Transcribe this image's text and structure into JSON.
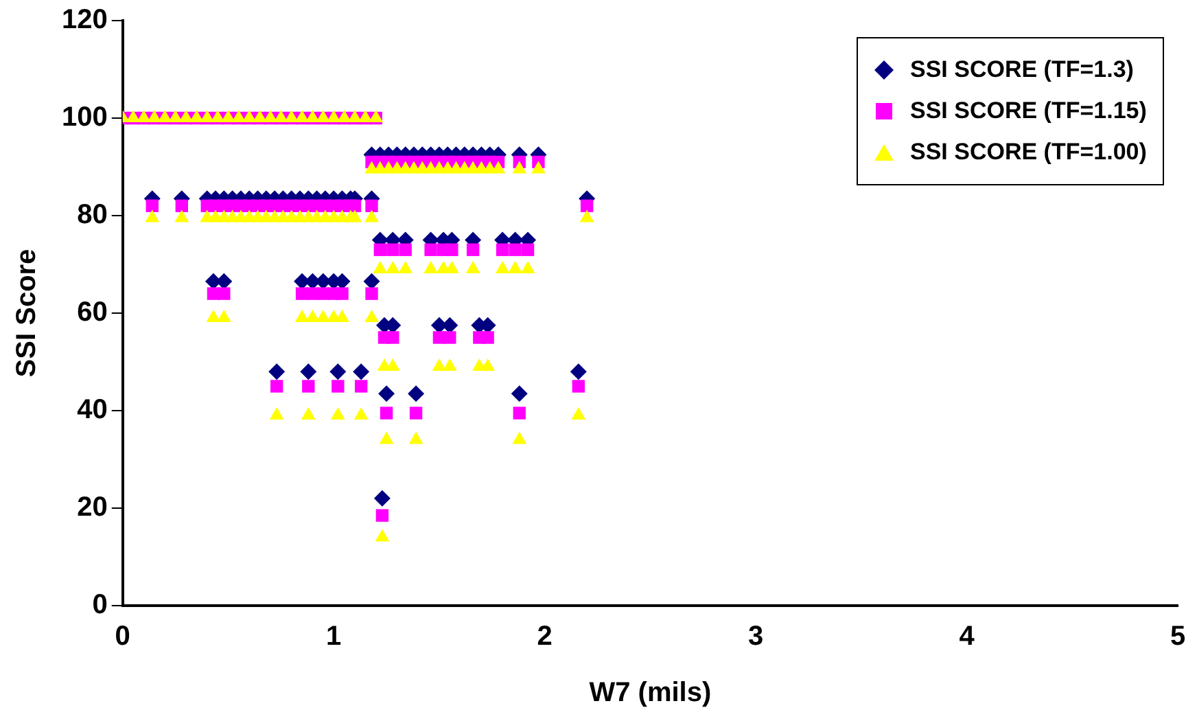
{
  "chart_data": {
    "type": "scatter",
    "xlabel": "W7 (mils)",
    "ylabel": "SSI Score",
    "xlim": [
      0,
      5
    ],
    "xticks": [
      0,
      1,
      2,
      3,
      4,
      5
    ],
    "ylim": [
      0,
      120
    ],
    "yticks": [
      0,
      20,
      40,
      60,
      80,
      100,
      120
    ],
    "grid": false,
    "legend": "top right",
    "x": [
      0,
      0.05,
      0.1,
      0.15,
      0.2,
      0.25,
      0.3,
      0.35,
      0.4,
      0.45,
      0.5,
      0.55,
      0.6,
      0.65,
      0.7,
      0.75,
      0.8,
      0.85,
      0.9,
      0.95,
      1,
      1.05,
      1.1,
      1.15,
      1.2,
      1.18,
      1.22,
      1.26,
      1.3,
      1.34,
      1.38,
      1.42,
      1.46,
      1.5,
      1.54,
      1.58,
      1.62,
      1.66,
      1.7,
      1.74,
      1.78,
      1.88,
      1.97,
      0.14,
      0.28,
      0.4,
      0.44,
      0.48,
      0.52,
      0.56,
      0.6,
      0.64,
      0.68,
      0.72,
      0.76,
      0.8,
      0.84,
      0.88,
      0.92,
      0.96,
      1,
      1.04,
      1.08,
      1.1,
      1.18,
      2.2,
      1.22,
      1.28,
      1.34,
      1.46,
      1.52,
      1.56,
      1.66,
      1.8,
      1.86,
      1.92,
      0.43,
      0.48,
      0.85,
      0.9,
      0.95,
      1,
      1.04,
      1.18,
      1.24,
      1.28,
      1.5,
      1.55,
      1.69,
      1.73,
      0.73,
      0.88,
      1.02,
      1.13,
      2.16,
      1.25,
      1.39,
      1.88,
      1.23
    ],
    "series": [
      {
        "name": "SSI SCORE (TF=1.3)",
        "color": "#000080",
        "marker": "diamond",
        "values": [
          null,
          null,
          null,
          null,
          null,
          null,
          null,
          null,
          null,
          null,
          null,
          null,
          null,
          null,
          null,
          null,
          null,
          null,
          null,
          null,
          null,
          null,
          null,
          null,
          null,
          92.5,
          92.5,
          92.5,
          92.5,
          92.5,
          92.5,
          92.5,
          92.5,
          92.5,
          92.5,
          92.5,
          92.5,
          92.5,
          92.5,
          92.5,
          92.5,
          92.5,
          92.5,
          83.5,
          83.5,
          83.5,
          83.5,
          83.5,
          83.5,
          83.5,
          83.5,
          83.5,
          83.5,
          83.5,
          83.5,
          83.5,
          83.5,
          83.5,
          83.5,
          83.5,
          83.5,
          83.5,
          83.5,
          83.5,
          83.5,
          83.5,
          75,
          75,
          75,
          75,
          75,
          75,
          75,
          75,
          75,
          75,
          66.5,
          66.5,
          66.5,
          66.5,
          66.5,
          66.5,
          66.5,
          66.5,
          57.5,
          57.5,
          57.5,
          57.5,
          57.5,
          57.5,
          48,
          48,
          48,
          48,
          48,
          43.5,
          43.5,
          43.5,
          22
        ]
      },
      {
        "name": "SSI SCORE (TF=1.15)",
        "color": "#ff00ff",
        "marker": "square",
        "values": [
          100,
          100,
          100,
          100,
          100,
          100,
          100,
          100,
          100,
          100,
          100,
          100,
          100,
          100,
          100,
          100,
          100,
          100,
          100,
          100,
          100,
          100,
          100,
          100,
          100,
          91,
          91,
          91,
          91,
          91,
          91,
          91,
          91,
          91,
          91,
          91,
          91,
          91,
          91,
          91,
          91,
          91,
          91,
          82,
          82,
          82,
          82,
          82,
          82,
          82,
          82,
          82,
          82,
          82,
          82,
          82,
          82,
          82,
          82,
          82,
          82,
          82,
          82,
          82,
          82,
          82,
          73,
          73,
          73,
          73,
          73,
          73,
          73,
          73,
          73,
          73,
          64,
          64,
          64,
          64,
          64,
          64,
          64,
          64,
          55,
          55,
          55,
          55,
          55,
          55,
          45,
          45,
          45,
          45,
          45,
          39.5,
          39.5,
          39.5,
          18.5
        ]
      },
      {
        "name": "SSI SCORE (TF=1.00)",
        "color": "#ffff00",
        "marker": "triangle",
        "values": [
          100,
          100,
          100,
          100,
          100,
          100,
          100,
          100,
          100,
          100,
          100,
          100,
          100,
          100,
          100,
          100,
          100,
          100,
          100,
          100,
          100,
          100,
          100,
          100,
          100,
          89.5,
          89.5,
          89.5,
          89.5,
          89.5,
          89.5,
          89.5,
          89.5,
          89.5,
          89.5,
          89.5,
          89.5,
          89.5,
          89.5,
          89.5,
          89.5,
          89.5,
          89.5,
          79.5,
          79.5,
          79.5,
          79.5,
          79.5,
          79.5,
          79.5,
          79.5,
          79.5,
          79.5,
          79.5,
          79.5,
          79.5,
          79.5,
          79.5,
          79.5,
          79.5,
          79.5,
          79.5,
          79.5,
          79.5,
          79.5,
          79.5,
          69,
          69,
          69,
          69,
          69,
          69,
          69,
          69,
          69,
          69,
          59,
          59,
          59,
          59,
          59,
          59,
          59,
          59,
          49,
          49,
          49,
          49,
          49,
          49,
          39,
          39,
          39,
          39,
          39,
          34,
          34,
          34,
          14
        ]
      }
    ]
  }
}
